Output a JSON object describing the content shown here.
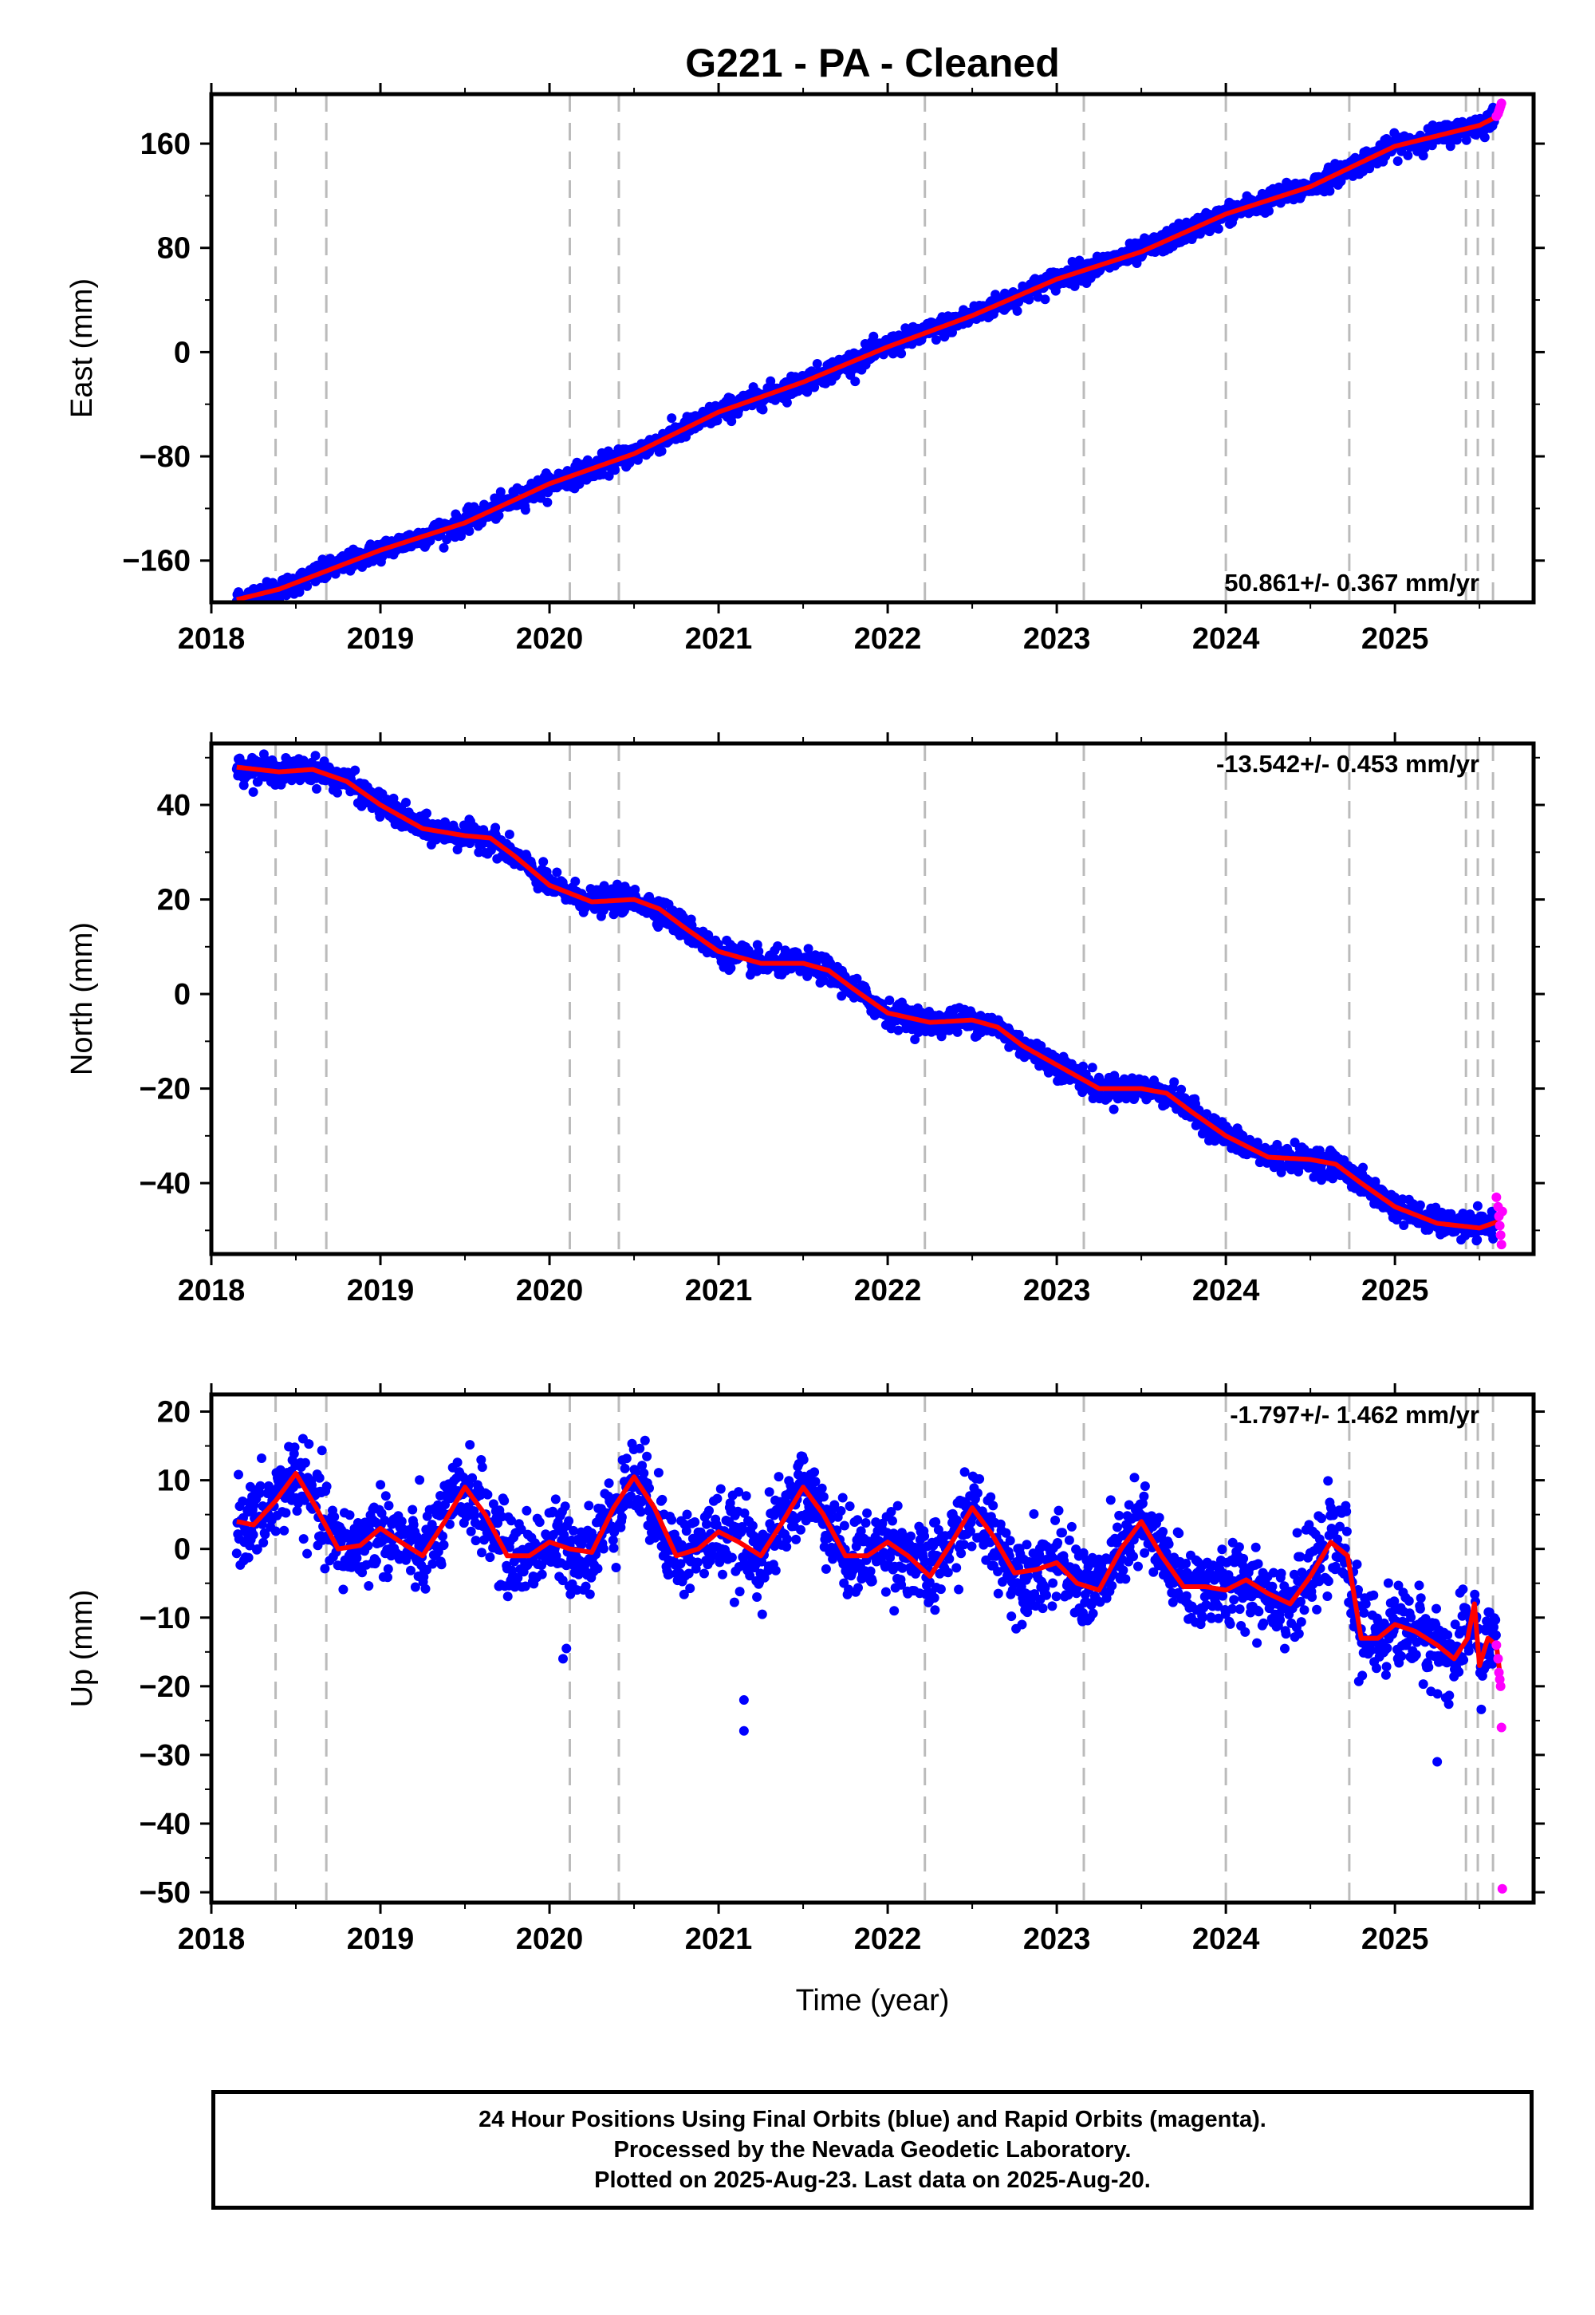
{
  "title": "G221  - PA - Cleaned",
  "xlabel": "Time (year)",
  "footer": {
    "line1": "24 Hour Positions Using Final Orbits (blue) and Rapid Orbits (magenta).",
    "line2": "Processed by the Nevada Geodetic Laboratory.",
    "line3": "Plotted on 2025-Aug-23. Last data on 2025-Aug-20."
  },
  "colors": {
    "final": "#0000ff",
    "rapid": "#ff00ff",
    "model": "#ff0000",
    "events": "#bbbbbb"
  },
  "chart_data": [
    {
      "type": "scatter",
      "component": "east",
      "ylabel": "East (mm)",
      "rate": "50.861+/- 0.367 mm/yr",
      "rate_position": "bottom-right",
      "ylim": [
        -192,
        198
      ],
      "yticks": [
        -160,
        -80,
        0,
        80,
        160
      ],
      "xlim": [
        2018.0,
        2025.82
      ],
      "xticks": [
        2018,
        2019,
        2020,
        2021,
        2022,
        2023,
        2024,
        2025
      ],
      "event_lines": [
        2018.38,
        2018.68,
        2020.12,
        2020.41,
        2022.22,
        2023.16,
        2024.0,
        2024.73,
        2025.42,
        2025.49,
        2025.58
      ],
      "trend": {
        "x": [
          2018.15,
          2018.4,
          2018.7,
          2019.0,
          2019.5,
          2020.0,
          2020.5,
          2021.0,
          2021.5,
          2022.0,
          2022.5,
          2023.0,
          2023.5,
          2024.0,
          2024.5,
          2025.0,
          2025.5,
          2025.62
        ],
        "y": [
          -190,
          -182,
          -167,
          -152,
          -131,
          -101,
          -78,
          -46,
          -23,
          4,
          28,
          56,
          77,
          106,
          127,
          158,
          174,
          182
        ]
      },
      "noise": 4,
      "rapid": {
        "x": [
          2025.6,
          2025.61,
          2025.615,
          2025.62,
          2025.625,
          2025.63
        ],
        "y": [
          181,
          183,
          185,
          187,
          189,
          191
        ]
      }
    },
    {
      "type": "scatter",
      "component": "north",
      "ylabel": "North (mm)",
      "rate": "-13.542+/- 0.453 mm/yr",
      "rate_position": "top-right",
      "ylim": [
        -55,
        53
      ],
      "yticks": [
        -40,
        -20,
        0,
        20,
        40
      ],
      "xlim": [
        2018.0,
        2025.82
      ],
      "xticks": [
        2018,
        2019,
        2020,
        2021,
        2022,
        2023,
        2024,
        2025
      ],
      "event_lines": [
        2018.38,
        2018.68,
        2020.12,
        2020.41,
        2022.22,
        2023.16,
        2024.0,
        2024.73,
        2025.42,
        2025.49,
        2025.58
      ],
      "trend": {
        "x": [
          2018.15,
          2018.4,
          2018.6,
          2018.8,
          2019.0,
          2019.25,
          2019.5,
          2019.65,
          2019.8,
          2020.0,
          2020.25,
          2020.5,
          2020.65,
          2020.8,
          2021.0,
          2021.25,
          2021.5,
          2021.65,
          2021.8,
          2022.0,
          2022.25,
          2022.5,
          2022.65,
          2022.8,
          2023.0,
          2023.25,
          2023.5,
          2023.65,
          2023.8,
          2024.0,
          2024.25,
          2024.5,
          2024.65,
          2024.8,
          2025.0,
          2025.25,
          2025.5,
          2025.62
        ],
        "y": [
          48,
          47,
          47.5,
          45,
          40,
          35,
          33.5,
          33,
          29,
          23,
          19.5,
          20,
          18,
          14,
          9,
          6.5,
          6.5,
          5,
          1,
          -4,
          -6,
          -5.5,
          -7,
          -11,
          -15,
          -20,
          -20,
          -21,
          -25,
          -30,
          -34.5,
          -35,
          -36,
          -40,
          -45,
          -48.5,
          -49.5,
          -48
        ]
      },
      "noise": 1.3,
      "rapid": {
        "x": [
          2025.6,
          2025.61,
          2025.615,
          2025.62,
          2025.625,
          2025.63,
          2025.635
        ],
        "y": [
          -43,
          -45,
          -47,
          -49,
          -51,
          -53,
          -46
        ]
      }
    },
    {
      "type": "scatter",
      "component": "up",
      "ylabel": "Up (mm)",
      "rate": "-1.797+/- 1.462 mm/yr",
      "rate_position": "top-right",
      "ylim": [
        -51.5,
        22.5
      ],
      "yticks": [
        -50,
        -40,
        -30,
        -20,
        -10,
        0,
        10,
        20
      ],
      "xlim": [
        2018.0,
        2025.82
      ],
      "xticks": [
        2018,
        2019,
        2020,
        2021,
        2022,
        2023,
        2024,
        2025
      ],
      "event_lines": [
        2018.38,
        2018.68,
        2020.12,
        2020.41,
        2022.22,
        2023.16,
        2024.0,
        2024.73,
        2025.42,
        2025.49,
        2025.58
      ],
      "trend": {
        "x": [
          2018.15,
          2018.25,
          2018.38,
          2018.5,
          2018.62,
          2018.75,
          2018.88,
          2019.0,
          2019.12,
          2019.25,
          2019.38,
          2019.5,
          2019.62,
          2019.75,
          2019.88,
          2020.0,
          2020.12,
          2020.25,
          2020.38,
          2020.5,
          2020.62,
          2020.75,
          2020.88,
          2021.0,
          2021.12,
          2021.25,
          2021.38,
          2021.5,
          2021.62,
          2021.75,
          2021.88,
          2022.0,
          2022.12,
          2022.25,
          2022.38,
          2022.5,
          2022.62,
          2022.75,
          2022.88,
          2023.0,
          2023.12,
          2023.25,
          2023.38,
          2023.5,
          2023.62,
          2023.75,
          2023.88,
          2024.0,
          2024.12,
          2024.25,
          2024.38,
          2024.5,
          2024.62,
          2024.72,
          2024.8,
          2024.9,
          2025.0,
          2025.12,
          2025.25,
          2025.35,
          2025.43,
          2025.47,
          2025.5,
          2025.55,
          2025.6,
          2025.63
        ],
        "y": [
          4,
          3.5,
          7,
          11,
          6,
          0,
          0.5,
          3,
          1,
          -1,
          4,
          9,
          5,
          -1,
          -1,
          1,
          0,
          -0.5,
          6,
          10.5,
          6,
          -1,
          0,
          2.5,
          1,
          -1,
          4,
          9,
          5,
          -1,
          -1,
          1,
          -1,
          -4,
          1,
          6,
          2,
          -3.5,
          -3,
          -2,
          -5,
          -6,
          0,
          4,
          -1,
          -5.5,
          -5.5,
          -6,
          -4.5,
          -6.5,
          -8,
          -4,
          1,
          -1,
          -13,
          -13,
          -11,
          -12,
          -14,
          -16,
          -13,
          -8,
          -17,
          -13,
          -14,
          -20
        ]
      },
      "noise": 3,
      "outliers": {
        "x": [
          2021.15,
          2021.15,
          2020.08,
          2020.1,
          2025.25
        ],
        "y": [
          -22,
          -26.5,
          -16,
          -14.5,
          -31
        ]
      },
      "rapid": {
        "x": [
          2025.6,
          2025.61,
          2025.615,
          2025.62,
          2025.625,
          2025.63,
          2025.635
        ],
        "y": [
          -14,
          -16,
          -18,
          -19,
          -20,
          -26,
          -49.5
        ]
      }
    }
  ]
}
